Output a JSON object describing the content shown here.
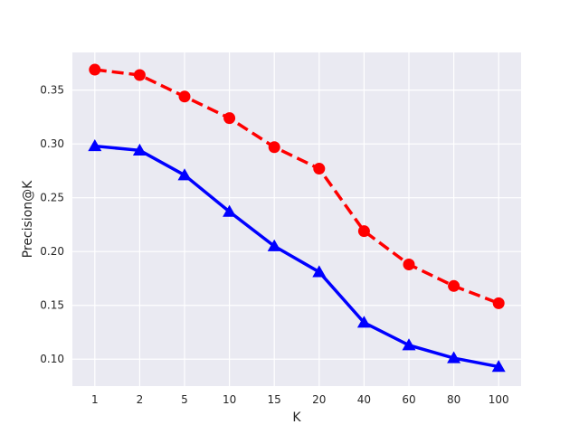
{
  "chart_data": {
    "type": "line",
    "title": "",
    "xlabel": "K",
    "ylabel": "Precision@K",
    "categories": [
      "1",
      "2",
      "5",
      "10",
      "15",
      "20",
      "40",
      "60",
      "80",
      "100"
    ],
    "ylim": [
      0.075,
      0.385
    ],
    "yticks": [
      "0.10",
      "0.15",
      "0.20",
      "0.25",
      "0.30",
      "0.35"
    ],
    "grid": true,
    "background": "#eaeaf2",
    "series": [
      {
        "values": [
          0.369,
          0.364,
          0.344,
          0.324,
          0.297,
          0.277,
          0.219,
          0.188,
          0.168,
          0.152
        ],
        "color": "#ff0000",
        "line_style": "dashed",
        "marker": "circle"
      },
      {
        "values": [
          0.298,
          0.294,
          0.271,
          0.237,
          0.205,
          0.181,
          0.134,
          0.113,
          0.101,
          0.093
        ],
        "color": "#0000ff",
        "line_style": "solid",
        "marker": "triangle"
      }
    ]
  }
}
